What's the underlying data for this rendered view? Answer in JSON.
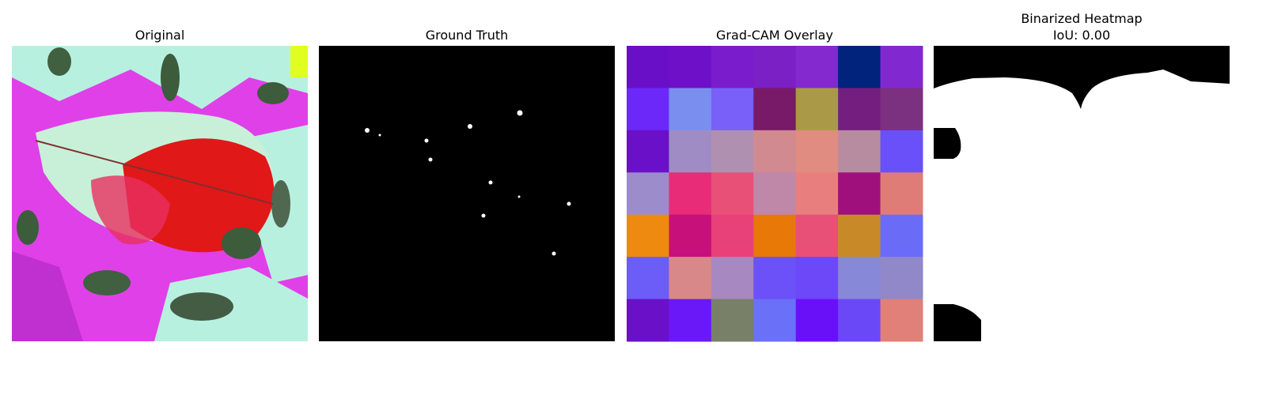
{
  "panels": [
    {
      "title": "Original"
    },
    {
      "title": "Ground Truth"
    },
    {
      "title": "Grad-CAM Overlay",
      "cells": [
        [
          "#6a0fc8",
          "#6e10c8",
          "#7a1ccc",
          "#7a20c4",
          "#8428d0",
          "#02237c",
          "#8228d0"
        ],
        [
          "#6c28f8",
          "#7a8ef0",
          "#7860f8",
          "#781a68",
          "#aa9a48",
          "#741f80",
          "#7c3080"
        ],
        [
          "#6a10c8",
          "#a08cc4",
          "#b090b0",
          "#d08a90",
          "#e08c80",
          "#b88ca0",
          "#6a50f8"
        ],
        [
          "#9c8ccc",
          "#e82c78",
          "#e85078",
          "#c088a8",
          "#e87e7e",
          "#a0107c",
          "#e07c78"
        ],
        [
          "#ee8a10",
          "#c8107a",
          "#e84078",
          "#e87808",
          "#e85078",
          "#c88a28",
          "#6a6cf8"
        ],
        [
          "#6c5cf8",
          "#d88888",
          "#a888c0",
          "#6c50f8",
          "#6c48f8",
          "#8888d8",
          "#9088c8"
        ],
        [
          "#6a10c8",
          "#6a18f8",
          "#788068",
          "#6a70f8",
          "#6a10f8",
          "#6a48f8",
          "#e08078"
        ]
      ]
    },
    {
      "title": "Binarized Heatmap",
      "subtitle": "IoU: 0.00"
    }
  ]
}
